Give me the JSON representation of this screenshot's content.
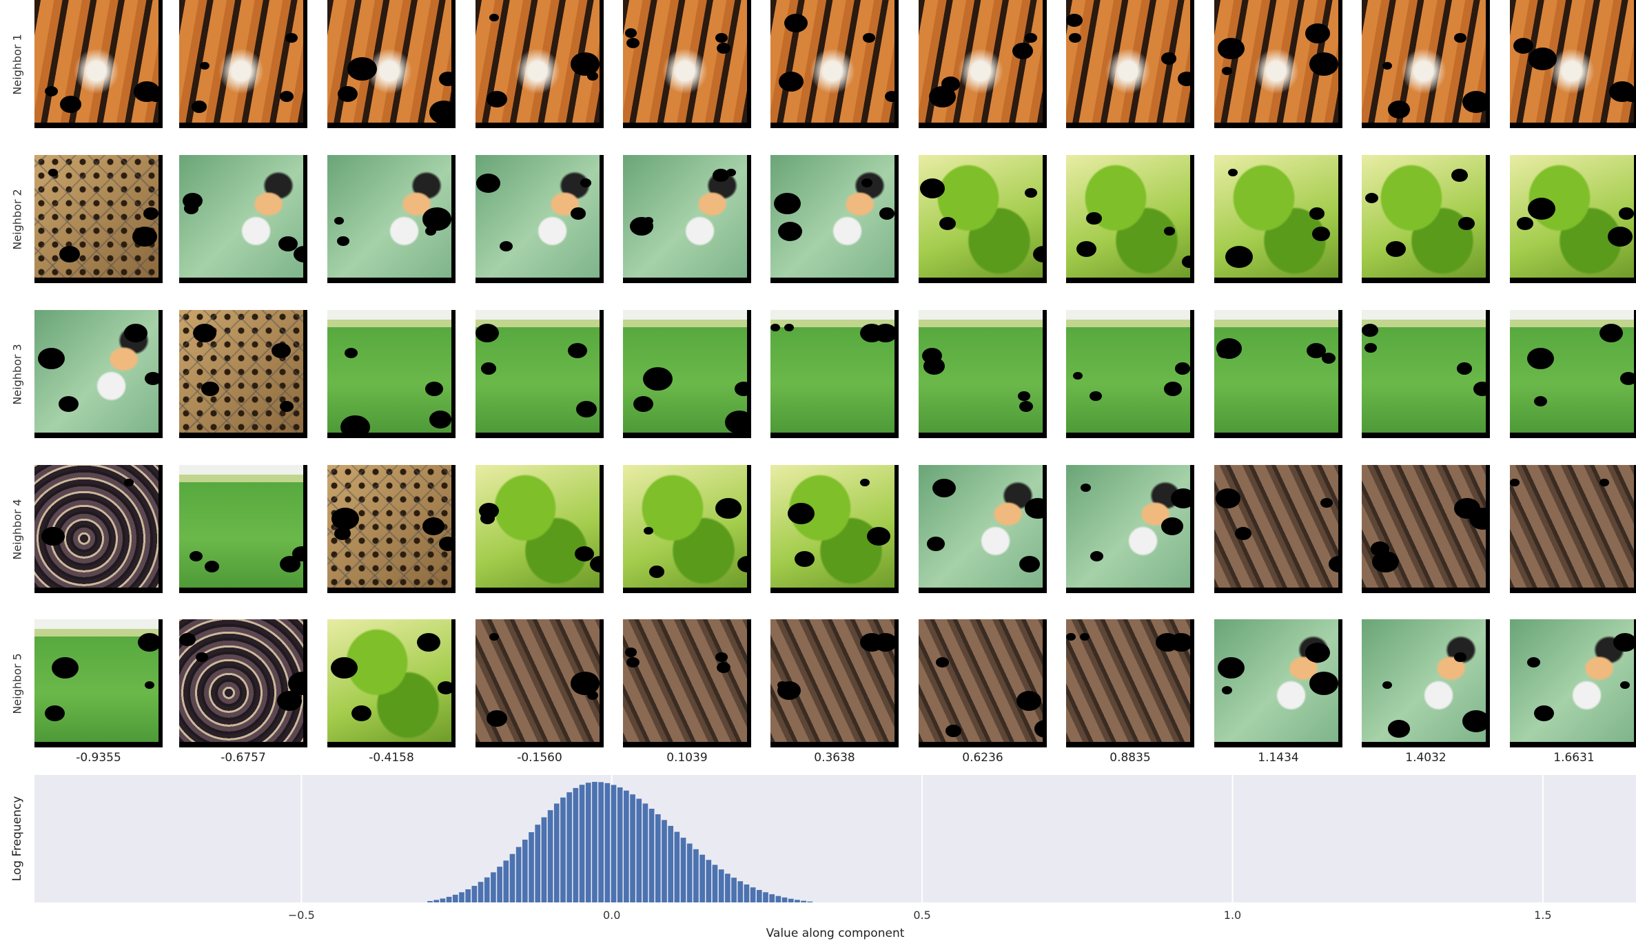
{
  "row_labels": [
    "Neighbor 1",
    "Neighbor 2",
    "Neighbor 3",
    "Neighbor 4",
    "Neighbor 5"
  ],
  "image_legend": {
    "tiger": "tiger",
    "leopard": "leopard",
    "bird": "bird",
    "lizard": "lizard",
    "field": "field",
    "snakes": "snakes",
    "bench": "bench"
  },
  "grid": [
    [
      "tiger",
      "tiger",
      "tiger",
      "tiger",
      "tiger",
      "tiger",
      "tiger",
      "tiger",
      "tiger",
      "tiger",
      "tiger"
    ],
    [
      "leopard",
      "bird",
      "bird",
      "bird",
      "bird",
      "bird",
      "lizard",
      "lizard",
      "lizard",
      "lizard",
      "lizard"
    ],
    [
      "bird",
      "leopard",
      "field",
      "field",
      "field",
      "field",
      "field",
      "field",
      "field",
      "field",
      "field"
    ],
    [
      "snakes",
      "field",
      "leopard",
      "lizard",
      "lizard",
      "lizard",
      "bird",
      "bird",
      "bench",
      "bench",
      "bench"
    ],
    [
      "field",
      "snakes",
      "lizard",
      "bench",
      "bench",
      "bench",
      "bench",
      "bench",
      "bird",
      "bird",
      "bird"
    ]
  ],
  "chart_data": {
    "type": "bar",
    "xlabel": "Value along component",
    "ylabel": "Log Frequency",
    "bin_values": [
      "-0.9355",
      "-0.6757",
      "-0.4158",
      "-0.1560",
      "0.1039",
      "0.3638",
      "0.6236",
      "0.8835",
      "1.1434",
      "1.4032",
      "1.6631"
    ],
    "xlim": [
      -0.93,
      1.65
    ],
    "xticks": [
      -0.5,
      0.0,
      0.5,
      1.0,
      1.5
    ],
    "xtick_labels": [
      "−0.5",
      "0.0",
      "0.5",
      "1.0",
      "1.5"
    ],
    "grid": true,
    "background": "#eaeaf2",
    "bar_color": "#4c72b0",
    "distribution": {
      "mean": -0.03,
      "std_left": 0.075,
      "std_right": 0.095,
      "support": [
        -0.45,
        0.55
      ]
    },
    "bar_width": 0.0102
  }
}
